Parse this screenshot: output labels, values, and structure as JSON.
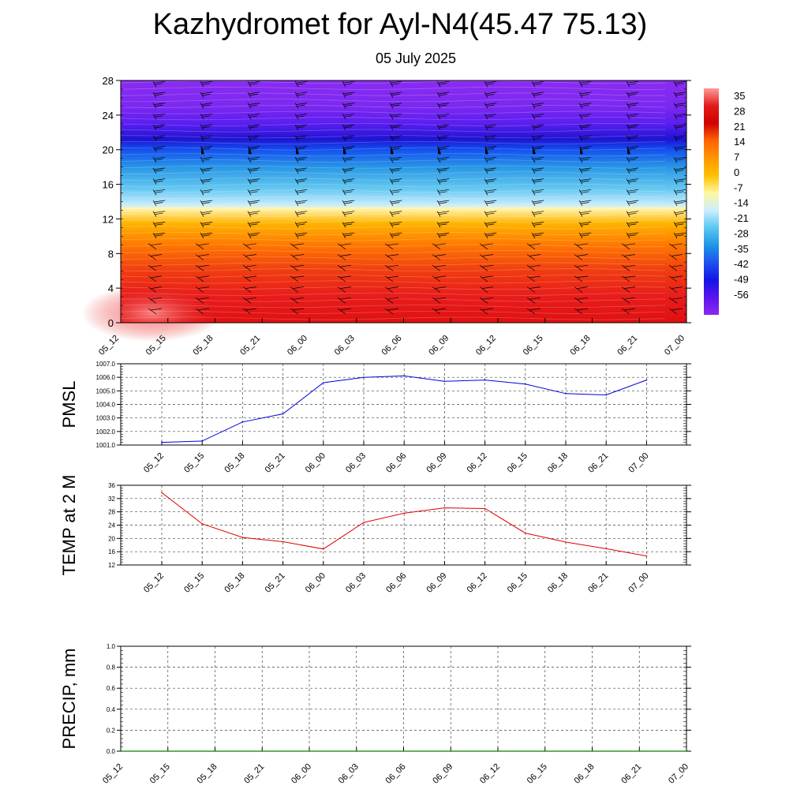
{
  "header": {
    "title": "Kazhydromet for Ayl-N4(45.47 75.13)",
    "subtitle": "05 July 2025"
  },
  "chart_data": [
    {
      "type": "heatmap",
      "panel": "vertical-cross-section",
      "x_ticks": [
        "05_12",
        "05_15",
        "05_18",
        "05_21",
        "06_00",
        "06_03",
        "06_06",
        "06_09",
        "06_12",
        "06_15",
        "06_18",
        "06_21",
        "07_00"
      ],
      "y_ticks": [
        0,
        4,
        8,
        12,
        16,
        20,
        24,
        28
      ],
      "ylim": [
        0,
        28
      ],
      "colorbar": {
        "labels": [
          "35",
          "28",
          "21",
          "14",
          "7",
          "0",
          "-7",
          "-14",
          "-21",
          "-28",
          "-35",
          "-42",
          "-49",
          "-56"
        ],
        "colors": [
          "#ff9a9a",
          "#e41a1a",
          "#d10000",
          "#ff6400",
          "#ff9600",
          "#ffc000",
          "#fff7a0",
          "#cceeff",
          "#5ac8f0",
          "#1e96e6",
          "#1e50f0",
          "#1414e6",
          "#5a14f0",
          "#8c28f0"
        ]
      },
      "temperature_profile": [
        {
          "height": 0,
          "color": "#e01010"
        },
        {
          "height": 3,
          "color": "#e81c1c"
        },
        {
          "height": 6,
          "color": "#f03c10"
        },
        {
          "height": 9,
          "color": "#ff7800"
        },
        {
          "height": 11.5,
          "color": "#ffb400"
        },
        {
          "height": 13.2,
          "color": "#fff5b0"
        },
        {
          "height": 13.6,
          "color": "#c8ecff"
        },
        {
          "height": 15.5,
          "color": "#64c8f0"
        },
        {
          "height": 18,
          "color": "#2896e6"
        },
        {
          "height": 20,
          "color": "#1450f0"
        },
        {
          "height": 21.2,
          "color": "#1e14d2"
        },
        {
          "height": 23,
          "color": "#5a1ef0"
        },
        {
          "height": 25,
          "color": "#7c28f0"
        },
        {
          "height": 28,
          "color": "#8a2cf2"
        }
      ]
    },
    {
      "type": "line",
      "name": "PMSL",
      "ylabel": "PMSL",
      "x": [
        "05_12",
        "05_15",
        "05_18",
        "05_21",
        "06_00",
        "06_03",
        "06_06",
        "06_09",
        "06_12",
        "06_15",
        "06_18",
        "06_21",
        "07_00"
      ],
      "values": [
        1001.2,
        1001.3,
        1002.7,
        1003.3,
        1005.6,
        1006.0,
        1006.1,
        1005.7,
        1005.8,
        1005.5,
        1004.8,
        1004.7,
        1005.8
      ],
      "ylim": [
        1001.0,
        1007.0
      ],
      "y_ticks": [
        "1001.0",
        "1002.0",
        "1003.0",
        "1004.0",
        "1005.0",
        "1006.0",
        "1007.0"
      ],
      "line_color": "#0000e0"
    },
    {
      "type": "line",
      "name": "TEMP at 2 M",
      "ylabel": "TEMP at 2 M",
      "x": [
        "05_12",
        "05_15",
        "05_18",
        "05_21",
        "06_00",
        "06_03",
        "06_06",
        "06_09",
        "06_12",
        "06_15",
        "06_18",
        "06_21",
        "07_00"
      ],
      "values": [
        33.8,
        24.4,
        20.3,
        19.0,
        16.8,
        24.8,
        27.6,
        29.2,
        29.0,
        21.6,
        18.9,
        16.9,
        14.7
      ],
      "ylim": [
        12,
        36
      ],
      "y_ticks": [
        "12",
        "16",
        "20",
        "24",
        "28",
        "32",
        "36"
      ],
      "line_color": "#e00000"
    },
    {
      "type": "line",
      "name": "PRECIP, mm",
      "ylabel": "PRECIP, mm",
      "x": [
        "05_12",
        "05_15",
        "05_18",
        "05_21",
        "06_00",
        "06_03",
        "06_06",
        "06_09",
        "06_12",
        "06_15",
        "06_18",
        "06_21",
        "07_00"
      ],
      "values": [
        0,
        0,
        0,
        0,
        0,
        0,
        0,
        0,
        0,
        0,
        0,
        0,
        0
      ],
      "ylim": [
        0,
        1.0
      ],
      "y_ticks": [
        "0.0",
        "0.2",
        "0.4",
        "0.6",
        "0.8",
        "1.0"
      ],
      "line_color": "#008000"
    }
  ]
}
